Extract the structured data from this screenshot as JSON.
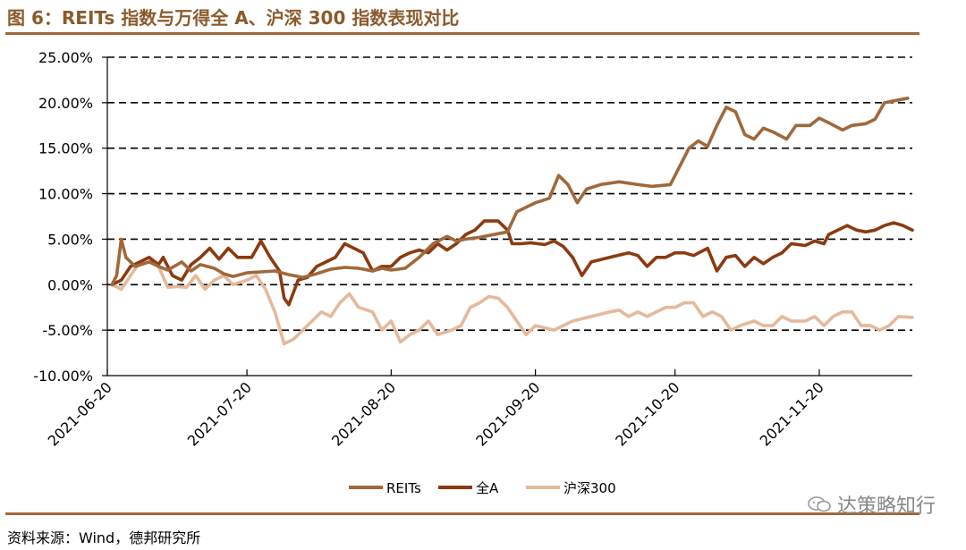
{
  "header": {
    "title": "图 6：REITs 指数与万得全 A、沪深 300 指数表现对比"
  },
  "footer": {
    "source": "资料来源：Wind，德邦研究所",
    "watermark": "达策略知行"
  },
  "chart_data": {
    "type": "line",
    "title": "",
    "xlabel": "",
    "ylabel": "",
    "ylim": [
      -10,
      25
    ],
    "grid": "horizontal-dashed",
    "legend_position": "bottom-center",
    "y_ticks": [
      "-10.00%",
      "-5.00%",
      "0.00%",
      "5.00%",
      "10.00%",
      "15.00%",
      "20.00%",
      "25.00%"
    ],
    "x_range": [
      "2021-06-20",
      "2021-12-10"
    ],
    "x_ticks": [
      "2021-06-20",
      "2021-07-20",
      "2021-08-20",
      "2021-09-20",
      "2021-10-20",
      "2021-11-20"
    ],
    "series": [
      {
        "name": "REITs",
        "color": "#a0683b",
        "points": [
          [
            "2021-06-21",
            0.0
          ],
          [
            "2021-06-22",
            1.0
          ],
          [
            "2021-06-23",
            5.0
          ],
          [
            "2021-06-24",
            3.0
          ],
          [
            "2021-06-26",
            2.0
          ],
          [
            "2021-06-29",
            2.5
          ],
          [
            "2021-07-01",
            2.0
          ],
          [
            "2021-07-03",
            1.6
          ],
          [
            "2021-07-06",
            2.5
          ],
          [
            "2021-07-08",
            1.5
          ],
          [
            "2021-07-10",
            2.2
          ],
          [
            "2021-07-13",
            1.8
          ],
          [
            "2021-07-15",
            1.2
          ],
          [
            "2021-07-17",
            0.9
          ],
          [
            "2021-07-20",
            1.3
          ],
          [
            "2021-07-23",
            1.4
          ],
          [
            "2021-07-26",
            1.5
          ],
          [
            "2021-07-29",
            1.1
          ],
          [
            "2021-08-01",
            0.8
          ],
          [
            "2021-08-04",
            1.2
          ],
          [
            "2021-08-07",
            1.7
          ],
          [
            "2021-08-10",
            1.9
          ],
          [
            "2021-08-13",
            1.8
          ],
          [
            "2021-08-16",
            1.5
          ],
          [
            "2021-08-18",
            1.8
          ],
          [
            "2021-08-20",
            1.6
          ],
          [
            "2021-08-23",
            1.8
          ],
          [
            "2021-08-26",
            3.0
          ],
          [
            "2021-08-29",
            4.5
          ],
          [
            "2021-09-01",
            5.3
          ],
          [
            "2021-09-03",
            4.8
          ],
          [
            "2021-09-05",
            5.0
          ],
          [
            "2021-09-08",
            5.2
          ],
          [
            "2021-09-11",
            5.5
          ],
          [
            "2021-09-14",
            5.8
          ],
          [
            "2021-09-16",
            8.0
          ],
          [
            "2021-09-18",
            8.5
          ],
          [
            "2021-09-20",
            9.0
          ],
          [
            "2021-09-23",
            9.5
          ],
          [
            "2021-09-25",
            12.0
          ],
          [
            "2021-09-27",
            11.0
          ],
          [
            "2021-09-29",
            9.0
          ],
          [
            "2021-10-01",
            10.5
          ],
          [
            "2021-10-04",
            11.0
          ],
          [
            "2021-10-08",
            11.3
          ],
          [
            "2021-10-12",
            11.0
          ],
          [
            "2021-10-15",
            10.8
          ],
          [
            "2021-10-19",
            11.0
          ],
          [
            "2021-10-21",
            13.0
          ],
          [
            "2021-10-23",
            15.0
          ],
          [
            "2021-10-25",
            15.8
          ],
          [
            "2021-10-27",
            15.2
          ],
          [
            "2021-10-29",
            17.5
          ],
          [
            "2021-10-31",
            19.5
          ],
          [
            "2021-11-02",
            19.0
          ],
          [
            "2021-11-04",
            16.5
          ],
          [
            "2021-11-06",
            16.0
          ],
          [
            "2021-11-08",
            17.2
          ],
          [
            "2021-11-10",
            16.8
          ],
          [
            "2021-11-13",
            16.0
          ],
          [
            "2021-11-15",
            17.5
          ],
          [
            "2021-11-18",
            17.5
          ],
          [
            "2021-11-20",
            18.3
          ],
          [
            "2021-11-22",
            17.8
          ],
          [
            "2021-11-25",
            17.0
          ],
          [
            "2021-11-27",
            17.5
          ],
          [
            "2021-11-30",
            17.7
          ],
          [
            "2021-12-02",
            18.2
          ],
          [
            "2021-12-04",
            20.0
          ],
          [
            "2021-12-07",
            20.3
          ],
          [
            "2021-12-09",
            20.5
          ]
        ]
      },
      {
        "name": "全A",
        "color": "#8b3a0f",
        "points": [
          [
            "2021-06-21",
            0.0
          ],
          [
            "2021-06-23",
            0.5
          ],
          [
            "2021-06-25",
            2.0
          ],
          [
            "2021-06-27",
            2.5
          ],
          [
            "2021-06-29",
            3.0
          ],
          [
            "2021-07-01",
            2.2
          ],
          [
            "2021-07-02",
            3.0
          ],
          [
            "2021-07-04",
            1.0
          ],
          [
            "2021-07-06",
            0.5
          ],
          [
            "2021-07-08",
            2.2
          ],
          [
            "2021-07-10",
            3.0
          ],
          [
            "2021-07-12",
            4.0
          ],
          [
            "2021-07-14",
            2.8
          ],
          [
            "2021-07-16",
            4.0
          ],
          [
            "2021-07-18",
            3.0
          ],
          [
            "2021-07-21",
            3.0
          ],
          [
            "2021-07-23",
            4.8
          ],
          [
            "2021-07-25",
            3.0
          ],
          [
            "2021-07-27",
            1.5
          ],
          [
            "2021-07-28",
            -1.5
          ],
          [
            "2021-07-29",
            -2.2
          ],
          [
            "2021-07-31",
            0.5
          ],
          [
            "2021-08-02",
            0.8
          ],
          [
            "2021-08-04",
            2.0
          ],
          [
            "2021-08-06",
            2.5
          ],
          [
            "2021-08-08",
            3.0
          ],
          [
            "2021-08-10",
            4.5
          ],
          [
            "2021-08-12",
            4.0
          ],
          [
            "2021-08-14",
            3.5
          ],
          [
            "2021-08-16",
            1.5
          ],
          [
            "2021-08-18",
            2.0
          ],
          [
            "2021-08-20",
            2.0
          ],
          [
            "2021-08-22",
            3.0
          ],
          [
            "2021-08-24",
            3.5
          ],
          [
            "2021-08-26",
            3.8
          ],
          [
            "2021-08-28",
            3.5
          ],
          [
            "2021-08-30",
            4.5
          ],
          [
            "2021-09-01",
            3.8
          ],
          [
            "2021-09-03",
            4.5
          ],
          [
            "2021-09-05",
            5.5
          ],
          [
            "2021-09-07",
            6.0
          ],
          [
            "2021-09-09",
            7.0
          ],
          [
            "2021-09-12",
            7.0
          ],
          [
            "2021-09-14",
            6.0
          ],
          [
            "2021-09-15",
            4.5
          ],
          [
            "2021-09-17",
            4.5
          ],
          [
            "2021-09-19",
            4.6
          ],
          [
            "2021-09-22",
            4.4
          ],
          [
            "2021-09-24",
            4.8
          ],
          [
            "2021-09-26",
            4.2
          ],
          [
            "2021-09-28",
            3.0
          ],
          [
            "2021-09-30",
            1.0
          ],
          [
            "2021-10-02",
            2.5
          ],
          [
            "2021-10-06",
            3.0
          ],
          [
            "2021-10-10",
            3.5
          ],
          [
            "2021-10-12",
            3.2
          ],
          [
            "2021-10-14",
            2.0
          ],
          [
            "2021-10-16",
            3.0
          ],
          [
            "2021-10-18",
            3.0
          ],
          [
            "2021-10-20",
            3.5
          ],
          [
            "2021-10-22",
            3.5
          ],
          [
            "2021-10-24",
            3.2
          ],
          [
            "2021-10-27",
            4.0
          ],
          [
            "2021-10-29",
            1.5
          ],
          [
            "2021-10-31",
            3.0
          ],
          [
            "2021-11-02",
            3.2
          ],
          [
            "2021-11-04",
            2.0
          ],
          [
            "2021-11-06",
            3.0
          ],
          [
            "2021-11-08",
            2.3
          ],
          [
            "2021-11-10",
            3.0
          ],
          [
            "2021-11-12",
            3.5
          ],
          [
            "2021-11-14",
            4.5
          ],
          [
            "2021-11-17",
            4.3
          ],
          [
            "2021-11-19",
            4.8
          ],
          [
            "2021-11-21",
            4.5
          ],
          [
            "2021-11-22",
            5.5
          ],
          [
            "2021-11-24",
            6.0
          ],
          [
            "2021-11-26",
            6.5
          ],
          [
            "2021-11-28",
            6.0
          ],
          [
            "2021-11-30",
            5.8
          ],
          [
            "2021-12-02",
            6.0
          ],
          [
            "2021-12-04",
            6.5
          ],
          [
            "2021-12-06",
            6.8
          ],
          [
            "2021-12-08",
            6.5
          ],
          [
            "2021-12-10",
            6.0
          ]
        ]
      },
      {
        "name": "沪深300",
        "color": "#e4b99a",
        "points": [
          [
            "2021-06-21",
            0.0
          ],
          [
            "2021-06-23",
            -0.5
          ],
          [
            "2021-06-25",
            1.0
          ],
          [
            "2021-06-27",
            2.5
          ],
          [
            "2021-06-29",
            3.0
          ],
          [
            "2021-07-01",
            2.0
          ],
          [
            "2021-07-03",
            -0.3
          ],
          [
            "2021-07-05",
            -0.2
          ],
          [
            "2021-07-07",
            -0.3
          ],
          [
            "2021-07-09",
            1.0
          ],
          [
            "2021-07-11",
            -0.5
          ],
          [
            "2021-07-13",
            0.5
          ],
          [
            "2021-07-15",
            1.0
          ],
          [
            "2021-07-17",
            0.0
          ],
          [
            "2021-07-20",
            0.5
          ],
          [
            "2021-07-22",
            1.0
          ],
          [
            "2021-07-24",
            -0.5
          ],
          [
            "2021-07-26",
            -3.0
          ],
          [
            "2021-07-28",
            -6.5
          ],
          [
            "2021-07-30",
            -6.0
          ],
          [
            "2021-08-01",
            -5.0
          ],
          [
            "2021-08-03",
            -4.0
          ],
          [
            "2021-08-05",
            -3.0
          ],
          [
            "2021-08-07",
            -3.5
          ],
          [
            "2021-08-09",
            -2.0
          ],
          [
            "2021-08-11",
            -1.0
          ],
          [
            "2021-08-13",
            -2.5
          ],
          [
            "2021-08-16",
            -3.0
          ],
          [
            "2021-08-18",
            -5.0
          ],
          [
            "2021-08-20",
            -4.0
          ],
          [
            "2021-08-22",
            -6.3
          ],
          [
            "2021-08-24",
            -5.5
          ],
          [
            "2021-08-26",
            -5.0
          ],
          [
            "2021-08-28",
            -4.0
          ],
          [
            "2021-08-30",
            -5.5
          ],
          [
            "2021-09-02",
            -5.0
          ],
          [
            "2021-09-04",
            -4.5
          ],
          [
            "2021-09-06",
            -2.5
          ],
          [
            "2021-09-08",
            -2.0
          ],
          [
            "2021-09-10",
            -1.3
          ],
          [
            "2021-09-12",
            -1.5
          ],
          [
            "2021-09-14",
            -2.5
          ],
          [
            "2021-09-16",
            -4.0
          ],
          [
            "2021-09-18",
            -5.5
          ],
          [
            "2021-09-20",
            -4.5
          ],
          [
            "2021-09-24",
            -5.0
          ],
          [
            "2021-09-26",
            -4.5
          ],
          [
            "2021-09-28",
            -4.0
          ],
          [
            "2021-10-02",
            -3.5
          ],
          [
            "2021-10-06",
            -3.0
          ],
          [
            "2021-10-08",
            -2.8
          ],
          [
            "2021-10-10",
            -3.5
          ],
          [
            "2021-10-12",
            -3.0
          ],
          [
            "2021-10-14",
            -3.5
          ],
          [
            "2021-10-16",
            -3.0
          ],
          [
            "2021-10-18",
            -2.5
          ],
          [
            "2021-10-20",
            -2.5
          ],
          [
            "2021-10-22",
            -2.0
          ],
          [
            "2021-10-24",
            -2.0
          ],
          [
            "2021-10-26",
            -3.5
          ],
          [
            "2021-10-28",
            -3.0
          ],
          [
            "2021-10-30",
            -3.5
          ],
          [
            "2021-11-01",
            -5.0
          ],
          [
            "2021-11-03",
            -4.5
          ],
          [
            "2021-11-06",
            -4.0
          ],
          [
            "2021-11-08",
            -4.5
          ],
          [
            "2021-11-10",
            -4.5
          ],
          [
            "2021-11-12",
            -3.5
          ],
          [
            "2021-11-14",
            -4.0
          ],
          [
            "2021-11-17",
            -4.0
          ],
          [
            "2021-11-19",
            -3.5
          ],
          [
            "2021-11-21",
            -4.5
          ],
          [
            "2021-11-23",
            -3.5
          ],
          [
            "2021-11-25",
            -3.0
          ],
          [
            "2021-11-27",
            -3.0
          ],
          [
            "2021-11-29",
            -4.5
          ],
          [
            "2021-12-01",
            -4.5
          ],
          [
            "2021-12-03",
            -5.0
          ],
          [
            "2021-12-05",
            -4.5
          ],
          [
            "2021-12-07",
            -3.5
          ],
          [
            "2021-12-10",
            -3.6
          ]
        ]
      }
    ]
  }
}
